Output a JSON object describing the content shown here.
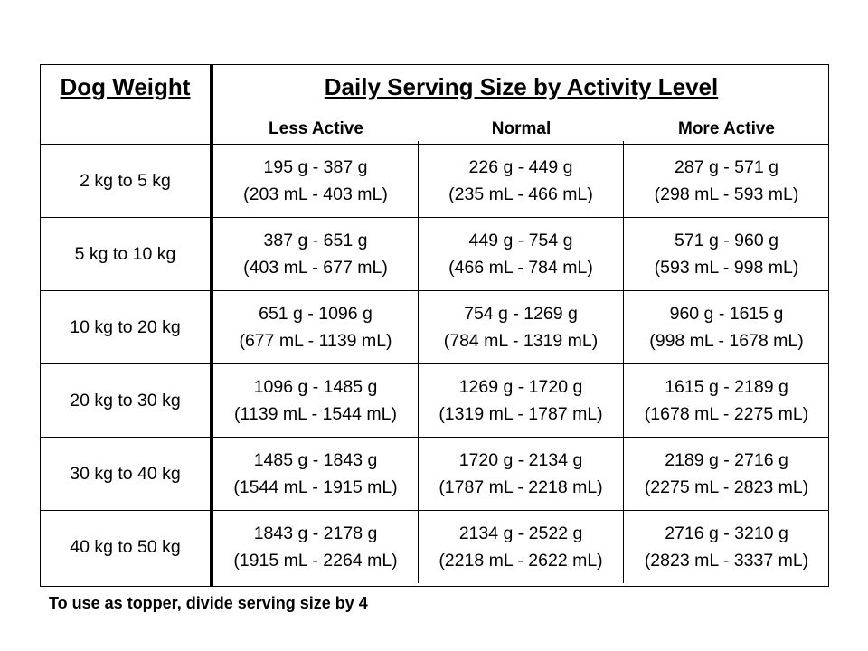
{
  "table": {
    "weight_header": "Dog Weight",
    "main_header": "Daily Serving Size by Activity Level",
    "activity_levels": [
      "Less Active",
      "Normal",
      "More Active"
    ],
    "rows": [
      {
        "weight": "2 kg to 5 kg",
        "cells": [
          {
            "grams": "195 g - 387 g",
            "ml": "(203 mL - 403 mL)"
          },
          {
            "grams": "226 g - 449 g",
            "ml": "(235 mL - 466 mL)"
          },
          {
            "grams": "287 g - 571 g",
            "ml": "(298 mL - 593 mL)"
          }
        ]
      },
      {
        "weight": "5 kg to 10 kg",
        "cells": [
          {
            "grams": "387 g - 651 g",
            "ml": "(403 mL - 677 mL)"
          },
          {
            "grams": "449 g - 754 g",
            "ml": "(466 mL - 784 mL)"
          },
          {
            "grams": "571 g - 960 g",
            "ml": "(593 mL - 998 mL)"
          }
        ]
      },
      {
        "weight": "10 kg to 20 kg",
        "cells": [
          {
            "grams": "651 g - 1096 g",
            "ml": "(677 mL - 1139 mL)"
          },
          {
            "grams": "754 g - 1269 g",
            "ml": "(784 mL - 1319 mL)"
          },
          {
            "grams": "960 g - 1615 g",
            "ml": "(998 mL - 1678 mL)"
          }
        ]
      },
      {
        "weight": "20 kg to 30 kg",
        "cells": [
          {
            "grams": "1096 g - 1485 g",
            "ml": "(1139 mL - 1544 mL)"
          },
          {
            "grams": "1269 g - 1720 g",
            "ml": "(1319 mL - 1787 mL)"
          },
          {
            "grams": "1615 g - 2189 g",
            "ml": "(1678 mL - 2275 mL)"
          }
        ]
      },
      {
        "weight": "30 kg to 40 kg",
        "cells": [
          {
            "grams": "1485 g - 1843 g",
            "ml": "(1544 mL - 1915 mL)"
          },
          {
            "grams": "1720 g - 2134 g",
            "ml": "(1787 mL - 2218 mL)"
          },
          {
            "grams": "2189 g - 2716 g",
            "ml": "(2275 mL - 2823 mL)"
          }
        ]
      },
      {
        "weight": "40 kg to 50 kg",
        "cells": [
          {
            "grams": "1843 g - 2178 g",
            "ml": "(1915 mL - 2264 mL)"
          },
          {
            "grams": "2134 g - 2522 g",
            "ml": "(2218 mL - 2622 mL)"
          },
          {
            "grams": "2716 g - 3210 g",
            "ml": "(2823 mL - 3337 mL)"
          }
        ]
      }
    ]
  },
  "footnote": "To use as topper, divide serving size by 4"
}
